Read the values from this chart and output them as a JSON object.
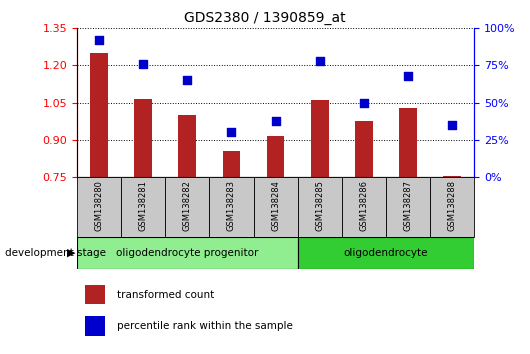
{
  "title": "GDS2380 / 1390859_at",
  "samples": [
    "GSM138280",
    "GSM138281",
    "GSM138282",
    "GSM138283",
    "GSM138284",
    "GSM138285",
    "GSM138286",
    "GSM138287",
    "GSM138288"
  ],
  "transformed_count": [
    1.25,
    1.065,
    1.0,
    0.855,
    0.915,
    1.06,
    0.975,
    1.03,
    0.755
  ],
  "percentile_rank": [
    92,
    76,
    65,
    30,
    38,
    78,
    50,
    68,
    35
  ],
  "ylim_left": [
    0.75,
    1.35
  ],
  "ylim_right": [
    0,
    100
  ],
  "yticks_left": [
    0.75,
    0.9,
    1.05,
    1.2,
    1.35
  ],
  "yticks_right": [
    0,
    25,
    50,
    75,
    100
  ],
  "bar_color": "#B22222",
  "scatter_color": "#0000CD",
  "plot_bg": "#FFFFFF",
  "group1_label": "oligodendrocyte progenitor",
  "group2_label": "oligodendrocyte",
  "group1_indices": [
    0,
    1,
    2,
    3,
    4
  ],
  "group2_indices": [
    5,
    6,
    7,
    8
  ],
  "group1_color": "#90EE90",
  "group2_color": "#32CD32",
  "legend_red": "transformed count",
  "legend_blue": "percentile rank within the sample",
  "dev_stage_label": "development stage"
}
